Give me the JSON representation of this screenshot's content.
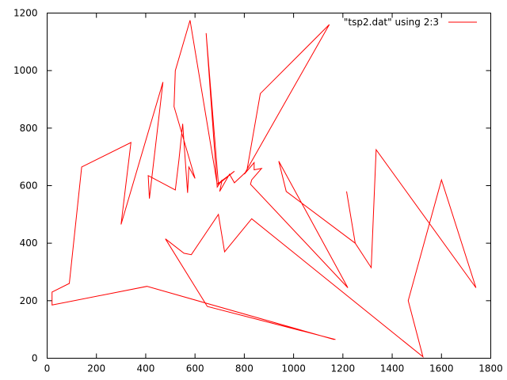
{
  "chart_data": {
    "type": "line",
    "title": "",
    "xlabel": "",
    "ylabel": "",
    "xlim": [
      0,
      1800
    ],
    "ylim": [
      0,
      1200
    ],
    "x_ticks": [
      0,
      200,
      400,
      600,
      800,
      1000,
      1200,
      1400,
      1600,
      1800
    ],
    "y_ticks": [
      0,
      200,
      400,
      600,
      800,
      1000,
      1200
    ],
    "x_tick_labels": [
      "0",
      "200",
      "400",
      "600",
      "800",
      "1000",
      "1200",
      "1400",
      "1600",
      "1800"
    ],
    "y_tick_labels": [
      "0",
      "200",
      "400",
      "600",
      "800",
      "1000",
      "1200"
    ],
    "grid": false,
    "legend_position": "top-right",
    "series": [
      {
        "name": "\"tsp2.dat\" using 2:3",
        "color": "#ff0000",
        "points": [
          [
            1170,
            65
          ],
          [
            650,
            180
          ],
          [
            480,
            415
          ],
          [
            555,
            365
          ],
          [
            585,
            360
          ],
          [
            695,
            500
          ],
          [
            720,
            370
          ],
          [
            830,
            485
          ],
          [
            1525,
            5
          ],
          [
            1465,
            200
          ],
          [
            1600,
            620
          ],
          [
            1740,
            245
          ],
          [
            1335,
            725
          ],
          [
            1315,
            315
          ],
          [
            1250,
            400
          ],
          [
            1215,
            580
          ],
          [
            1250,
            400
          ],
          [
            970,
            580
          ],
          [
            940,
            685
          ],
          [
            1220,
            245
          ],
          [
            825,
            605
          ],
          [
            830,
            620
          ],
          [
            870,
            660
          ],
          [
            840,
            655
          ],
          [
            840,
            680
          ],
          [
            800,
            640
          ],
          [
            1145,
            1160
          ],
          [
            865,
            920
          ],
          [
            810,
            650
          ],
          [
            760,
            610
          ],
          [
            740,
            640
          ],
          [
            700,
            580
          ],
          [
            710,
            620
          ],
          [
            690,
            595
          ],
          [
            645,
            1130
          ],
          [
            695,
            605
          ],
          [
            760,
            650
          ],
          [
            690,
            605
          ],
          [
            580,
            1175
          ],
          [
            520,
            1000
          ],
          [
            515,
            875
          ],
          [
            600,
            625
          ],
          [
            575,
            665
          ],
          [
            570,
            575
          ],
          [
            550,
            815
          ],
          [
            535,
            690
          ],
          [
            520,
            585
          ],
          [
            410,
            635
          ],
          [
            415,
            555
          ],
          [
            470,
            960
          ],
          [
            300,
            465
          ],
          [
            340,
            750
          ],
          [
            140,
            665
          ],
          [
            90,
            260
          ],
          [
            20,
            230
          ],
          [
            20,
            185
          ],
          [
            405,
            250
          ],
          [
            1165,
            65
          ]
        ]
      }
    ]
  }
}
